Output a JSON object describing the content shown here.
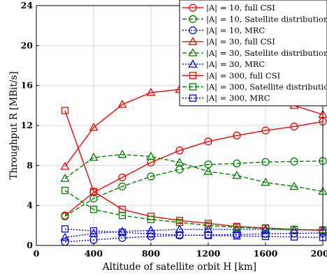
{
  "chart_data": {
    "type": "line",
    "xlabel": "Altitude of satellite orbit H [km]",
    "ylabel": "Throughput R [MBit/s]",
    "xlim": [
      0,
      2000
    ],
    "ylim": [
      0,
      24
    ],
    "xticks": [
      0,
      400,
      800,
      1200,
      1600,
      2000
    ],
    "yticks": [
      0,
      4,
      8,
      12,
      16,
      20,
      24
    ],
    "grid": true,
    "legend_position": "top-right",
    "x": [
      200,
      400,
      600,
      800,
      1000,
      1200,
      1400,
      1600,
      1800,
      2000
    ],
    "series": [
      {
        "name": "|A| = 10, full CSI",
        "color": "#ff0000",
        "line": "solid",
        "marker": "circle",
        "values": [
          3.0,
          5.3,
          6.8,
          8.3,
          9.5,
          10.4,
          11.0,
          11.5,
          11.9,
          12.4
        ]
      },
      {
        "name": "|A| = 10, Satellite distribution",
        "color": "#008000",
        "line": "dashed",
        "marker": "circle",
        "values": [
          2.9,
          4.7,
          5.9,
          6.9,
          7.6,
          8.1,
          8.2,
          8.35,
          8.4,
          8.45
        ]
      },
      {
        "name": "|A| = 10, MRC",
        "color": "#0000ff",
        "line": "dotted",
        "marker": "circle",
        "values": [
          0.35,
          0.55,
          0.75,
          0.9,
          1.0,
          1.05,
          1.1,
          1.15,
          1.2,
          1.25
        ]
      },
      {
        "name": "|A| = 30, full CSI",
        "color": "#ff0000",
        "line": "solid",
        "marker": "triangle",
        "values": [
          7.9,
          11.8,
          14.1,
          15.3,
          15.6,
          15.6,
          15.2,
          14.6,
          14.0,
          13.1
        ]
      },
      {
        "name": "|A| = 30, Satellite distribution",
        "color": "#008000",
        "line": "dashed",
        "marker": "triangle",
        "values": [
          6.7,
          8.8,
          9.1,
          8.9,
          8.3,
          7.4,
          7.0,
          6.3,
          5.9,
          5.4
        ]
      },
      {
        "name": "|A| = 30, MRC",
        "color": "#0000ff",
        "line": "dotted",
        "marker": "triangle",
        "values": [
          0.8,
          1.2,
          1.4,
          1.5,
          1.6,
          1.6,
          1.6,
          1.6,
          1.55,
          1.55
        ]
      },
      {
        "name": "|A| = 300, full CSI",
        "color": "#ff0000",
        "line": "solid",
        "marker": "square",
        "values": [
          13.5,
          5.4,
          3.6,
          2.9,
          2.5,
          2.2,
          1.9,
          1.75,
          1.6,
          1.5
        ]
      },
      {
        "name": "|A| = 300, Satellite distribution",
        "color": "#008000",
        "line": "dashed",
        "marker": "square",
        "values": [
          5.5,
          3.6,
          3.0,
          2.6,
          2.3,
          2.0,
          1.8,
          1.7,
          1.6,
          1.55
        ]
      },
      {
        "name": "|A| = 300, MRC",
        "color": "#0000ff",
        "line": "dotted",
        "marker": "square",
        "values": [
          1.65,
          1.45,
          1.3,
          1.15,
          1.05,
          1.0,
          0.95,
          0.9,
          0.85,
          0.8
        ]
      }
    ]
  }
}
